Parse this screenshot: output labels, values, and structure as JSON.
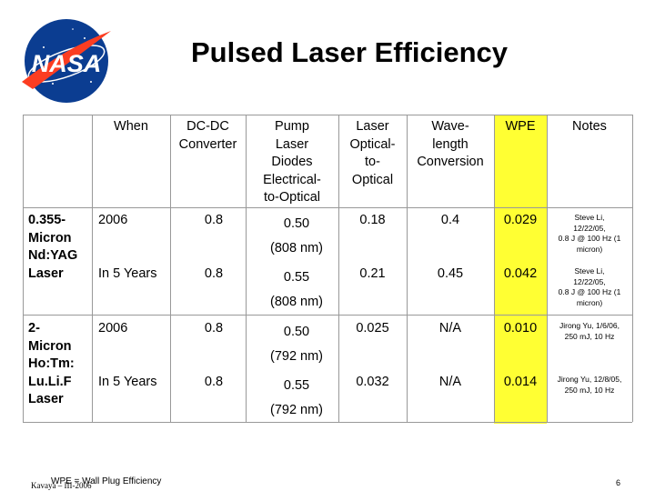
{
  "title": "Pulsed Laser Efficiency",
  "logo_text": "NASA",
  "headers": [
    "When",
    "DC-DC\nConverter",
    "Pump\nLaser\nDiodes\nElectrical-\nto-Optical",
    "Laser\nOptical-\nto-\nOptical",
    "Wave-\nlength\nConversion",
    "WPE",
    "Notes"
  ],
  "groups": [
    {
      "label": "0.355-\nMicron\nNd:YAG\nLaser"
    },
    {
      "label": "2-\nMicron\nHo:Tm:\nLu.Li.F\nLaser"
    }
  ],
  "rows": [
    {
      "when": "2006",
      "dc": "0.8",
      "pump": "0.50\n(808 nm)",
      "laser": "0.18",
      "wave": "0.4",
      "wpe": "0.029",
      "notes": "Steve Li,\n12/22/05,\n0.8 J @ 100 Hz (1\nmicron)"
    },
    {
      "when": "In 5 Years",
      "dc": "0.8",
      "pump": "0.55\n(808 nm)",
      "laser": "0.21",
      "wave": "0.45",
      "wpe": "0.042",
      "notes": "Steve Li,\n12/22/05,\n0.8 J @ 100 Hz (1\nmicron)"
    },
    {
      "when": "2006",
      "dc": "0.8",
      "pump": "0.50\n(792 nm)",
      "laser": "0.025",
      "wave": "N/A",
      "wpe": "0.010",
      "notes": "Jirong Yu, 1/6/06,\n250 mJ, 10 Hz"
    },
    {
      "when": "In 5 Years",
      "dc": "0.8",
      "pump": "0.55\n(792 nm)",
      "laser": "0.032",
      "wave": "N/A",
      "wpe": "0.014",
      "notes": "Jirong Yu, 12/8/05,\n250 mJ, 10 Hz"
    }
  ],
  "footnote": "WPE = Wall Plug Efficiency",
  "footnote_overlap": "Kavaya – III-2006",
  "page_number": "6",
  "colors": {
    "wpe_highlight": "#ffff33",
    "nasa_blue": "#0b3d91",
    "nasa_red": "#fc3d21"
  }
}
